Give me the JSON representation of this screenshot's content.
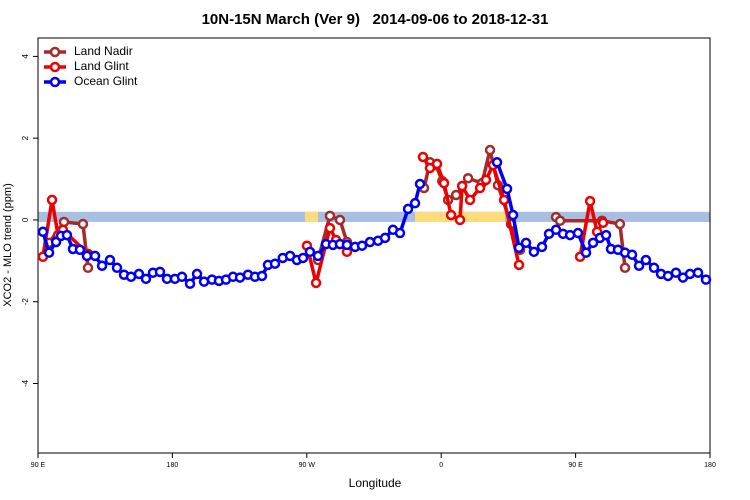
{
  "chart_data": {
    "type": "line",
    "title": "10N-15N March (Ver 9)   2014-09-06 to 2018-12-31",
    "x_label": "Longitude",
    "y_label": "XCO2 - MLO trend (ppm)",
    "xlim": [
      90,
      540
    ],
    "ylim": [
      -5.7,
      4.45
    ],
    "xticks": [
      {
        "value": 90,
        "label": "90 E"
      },
      180,
      {
        "value": 270,
        "label": "90 W"
      },
      {
        "value": 360,
        "label": "0"
      },
      {
        "value": 450,
        "label": "90 E"
      },
      {
        "value": 540,
        "label": "180"
      }
    ],
    "yticks": [
      -4,
      -2,
      0,
      2,
      4
    ],
    "legend": "top-left",
    "band": {
      "ylim": [
        -0.05,
        0.2
      ],
      "color": "#a7bfe2",
      "highlight_color": "#fcdc7c",
      "highlights": [
        [
          268.8,
          277.5
        ],
        [
          342.5,
          402.7
        ]
      ]
    },
    "series": [
      {
        "name": "Land Nadir",
        "color": "#a52a2a",
        "x": [
          97.4,
          107.4,
          120.1,
          123.5,
          null,
          277.5,
          285.5,
          292.2,
          296.9,
          null,
          348.5,
          352.5,
          356.5,
          360.7,
          364.6,
          370,
          378,
          387.3,
          392.7,
          398,
          406.7,
          412.8,
          null,
          436.9,
          439.6,
          467.7,
          479.7,
          483.1
        ],
        "values": [
          -0.56,
          -0.05,
          -0.1,
          -1.17,
          null,
          -0.98,
          0.1,
          0.0,
          -0.54,
          null,
          0.78,
          1.41,
          1.34,
          0.95,
          0.49,
          0.61,
          1.02,
          0.9,
          1.71,
          0.85,
          -0.1,
          -0.73,
          null,
          0.07,
          -0.02,
          -0.02,
          -0.1,
          -1.17
        ]
      },
      {
        "name": "Land Glint",
        "color": "#ee0000",
        "x": [
          93.3,
          99.4,
          103.4,
          106.7,
          123.5,
          null,
          270.1,
          276.2,
          285.5,
          289.6,
          296.9,
          null,
          347.8,
          352.5,
          357.2,
          361.9,
          366.6,
          372.6,
          374,
          379.3,
          386,
          390,
          394.7,
          402.1,
          412.1,
          null,
          453,
          459.7,
          464.4,
          468.4
        ],
        "values": [
          -0.9,
          0.49,
          -0.37,
          -0.24,
          -0.83,
          null,
          -0.63,
          -1.54,
          -0.2,
          -0.49,
          -0.78,
          null,
          1.54,
          1.27,
          1.37,
          0.9,
          0.12,
          0.0,
          0.83,
          0.49,
          0.78,
          0.98,
          1.34,
          0.49,
          -1.1,
          null,
          -0.9,
          0.46,
          -0.29,
          -0.07
        ]
      },
      {
        "name": "Ocean Glint",
        "color": "#0000ee",
        "x": [
          93.3,
          97.4,
          102.1,
          105.4,
          109.4,
          113.4,
          118.1,
          122.8,
          128.2,
          132.9,
          138.2,
          142.9,
          147.6,
          152.3,
          157.6,
          162.3,
          167,
          171.7,
          176.4,
          181.7,
          186.4,
          191.8,
          196.5,
          201.2,
          206.5,
          211.2,
          215.9,
          220.6,
          225.3,
          230.6,
          235.3,
          240,
          244,
          248.7,
          253.9,
          258.8,
          263.4,
          267.5,
          272.1,
          277.5,
          282.9,
          287.5,
          292.2,
          296.9,
          302.3,
          307,
          312.3,
          317.7,
          322.4,
          327.7,
          332.4,
          337.8,
          342.5,
          345.8,
          null,
          397.4,
          404.1,
          408.1,
          412.1,
          416.8,
          422.1,
          427.5,
          432.2,
          436.9,
          441.6,
          446.3,
          451.6,
          457,
          461.7,
          466.3,
          470.4,
          473.7,
          478.4,
          483.1,
          487.8,
          492.5,
          497.1,
          502.5,
          507.2,
          511.9,
          517.2,
          521.9,
          526.6,
          532,
          537.3
        ],
        "values": [
          -0.29,
          -0.8,
          -0.54,
          -0.39,
          -0.37,
          -0.71,
          -0.73,
          -0.88,
          -0.88,
          -1.12,
          -0.98,
          -1.17,
          -1.34,
          -1.39,
          -1.32,
          -1.44,
          -1.29,
          -1.27,
          -1.44,
          -1.44,
          -1.39,
          -1.56,
          -1.32,
          -1.51,
          -1.46,
          -1.49,
          -1.46,
          -1.39,
          -1.41,
          -1.34,
          -1.39,
          -1.37,
          -1.1,
          -1.07,
          -0.93,
          -0.88,
          -0.98,
          -0.93,
          -0.78,
          -0.88,
          -0.59,
          -0.61,
          -0.59,
          -0.61,
          -0.66,
          -0.63,
          -0.54,
          -0.51,
          -0.44,
          -0.24,
          -0.32,
          0.27,
          0.41,
          0.88,
          null,
          1.41,
          0.76,
          0.12,
          -0.68,
          -0.56,
          -0.78,
          -0.66,
          -0.34,
          -0.24,
          -0.34,
          -0.37,
          -0.32,
          -0.8,
          -0.56,
          -0.44,
          -0.37,
          -0.71,
          -0.73,
          -0.8,
          -0.85,
          -1.12,
          -0.98,
          -1.17,
          -1.32,
          -1.37,
          -1.29,
          -1.41,
          -1.32,
          -1.29,
          -1.46
        ]
      }
    ]
  }
}
